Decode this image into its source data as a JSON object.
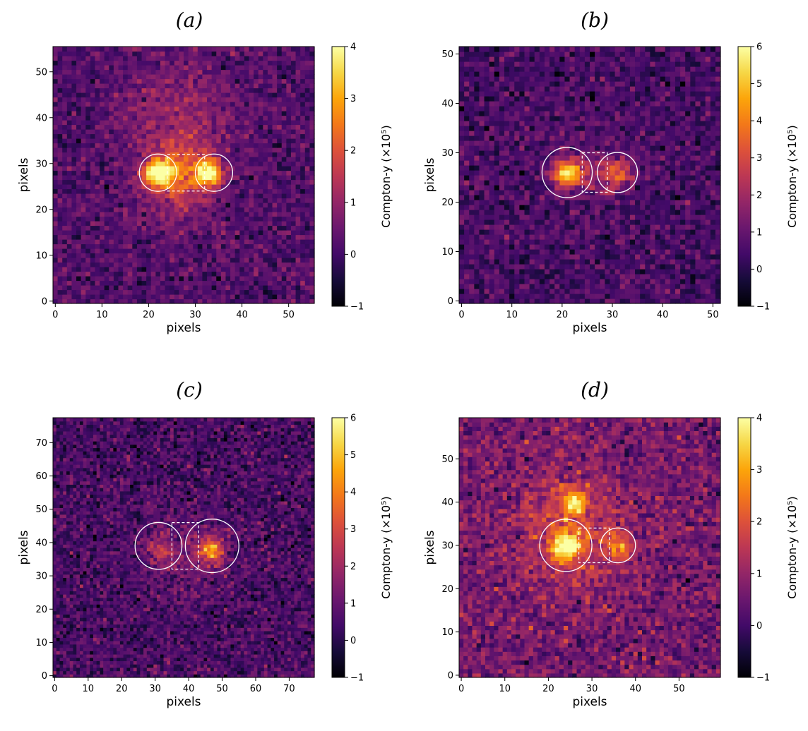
{
  "chart_data": [
    {
      "type": "heatmap",
      "title": "(a)",
      "xlabel": "pixels",
      "ylabel": "pixels",
      "grid_size": 56,
      "xlim": [
        -0.5,
        55.5
      ],
      "ylim": [
        -0.5,
        55.5
      ],
      "xticks": [
        "0",
        "10",
        "20",
        "30",
        "40",
        "50"
      ],
      "yticks": [
        "0",
        "10",
        "20",
        "30",
        "40",
        "50"
      ],
      "colorbar": {
        "label": "Compton-y (×10⁵)",
        "min": -1,
        "max": 4,
        "ticks": [
          "−1",
          "0",
          "1",
          "2",
          "3",
          "4"
        ]
      },
      "noise_level": 0.35,
      "background_level": 0.2,
      "blobs": [
        {
          "x": 22,
          "y": 28,
          "amp": 3.6,
          "sigma": 2.2
        },
        {
          "x": 33,
          "y": 28,
          "amp": 3.4,
          "sigma": 2.0
        },
        {
          "x": 27.5,
          "y": 28,
          "amp": 1.6,
          "sigma": 4.0
        },
        {
          "x": 26,
          "y": 40,
          "amp": 0.9,
          "sigma": 8.0
        },
        {
          "x": 25,
          "y": 22,
          "amp": 0.6,
          "sigma": 6.0
        }
      ],
      "circles": [
        {
          "x": 22,
          "y": 28,
          "r": 4.0
        },
        {
          "x": 34,
          "y": 28,
          "r": 4.0
        }
      ],
      "bridge_box": {
        "x0": 24,
        "x1": 32,
        "y0": 24,
        "y1": 32
      }
    },
    {
      "type": "heatmap",
      "title": "(b)",
      "xlabel": "pixels",
      "ylabel": "pixels",
      "grid_size": 52,
      "xlim": [
        -0.5,
        51.5
      ],
      "ylim": [
        -0.5,
        51.5
      ],
      "xticks": [
        "0",
        "10",
        "20",
        "30",
        "40",
        "50"
      ],
      "yticks": [
        "0",
        "10",
        "20",
        "30",
        "40",
        "50"
      ],
      "colorbar": {
        "label": "Compton-y (×10⁵)",
        "min": -1,
        "max": 6,
        "ticks": [
          "−1",
          "0",
          "1",
          "2",
          "3",
          "4",
          "5",
          "6"
        ]
      },
      "noise_level": 0.5,
      "background_level": 0.5,
      "blobs": [
        {
          "x": 21,
          "y": 26,
          "amp": 5.0,
          "sigma": 2.0
        },
        {
          "x": 31,
          "y": 26,
          "amp": 2.6,
          "sigma": 2.2
        },
        {
          "x": 26,
          "y": 26,
          "amp": 1.0,
          "sigma": 4.0
        }
      ],
      "circles": [
        {
          "x": 21,
          "y": 26,
          "r": 5.0
        },
        {
          "x": 31,
          "y": 26,
          "r": 4.0
        }
      ],
      "bridge_box": {
        "x0": 24,
        "x1": 29,
        "y0": 22,
        "y1": 30
      }
    },
    {
      "type": "heatmap",
      "title": "(c)",
      "xlabel": "pixels",
      "ylabel": "pixels",
      "grid_size": 78,
      "xlim": [
        -0.5,
        77.5
      ],
      "ylim": [
        -0.5,
        77.5
      ],
      "xticks": [
        "0",
        "10",
        "20",
        "30",
        "40",
        "50",
        "60",
        "70"
      ],
      "yticks": [
        "0",
        "10",
        "20",
        "30",
        "40",
        "50",
        "60",
        "70"
      ],
      "colorbar": {
        "label": "Compton-y (×10⁵)",
        "min": -1,
        "max": 6,
        "ticks": [
          "−1",
          "0",
          "1",
          "2",
          "3",
          "4",
          "5",
          "6"
        ]
      },
      "noise_level": 0.55,
      "background_level": 0.5,
      "blobs": [
        {
          "x": 47,
          "y": 38,
          "amp": 3.6,
          "sigma": 2.6
        },
        {
          "x": 31,
          "y": 38,
          "amp": 1.6,
          "sigma": 2.6
        },
        {
          "x": 40,
          "y": 36,
          "amp": 0.9,
          "sigma": 8.0
        }
      ],
      "circles": [
        {
          "x": 31,
          "y": 39,
          "r": 7.0
        },
        {
          "x": 47,
          "y": 39,
          "r": 8.0
        }
      ],
      "bridge_box": {
        "x0": 35,
        "x1": 43,
        "y0": 32,
        "y1": 46
      }
    },
    {
      "type": "heatmap",
      "title": "(d)",
      "xlabel": "pixels",
      "ylabel": "pixels",
      "grid_size": 60,
      "xlim": [
        -0.5,
        59.5
      ],
      "ylim": [
        -0.5,
        59.5
      ],
      "xticks": [
        "0",
        "10",
        "20",
        "30",
        "40",
        "50"
      ],
      "yticks": [
        "0",
        "10",
        "20",
        "30",
        "40",
        "50"
      ],
      "colorbar": {
        "label": "Compton-y (×10⁵)",
        "min": -1,
        "max": 4,
        "ticks": [
          "−1",
          "0",
          "1",
          "2",
          "3",
          "4"
        ]
      },
      "noise_level": 0.45,
      "background_level": 0.6,
      "blobs": [
        {
          "x": 24,
          "y": 30,
          "amp": 3.2,
          "sigma": 2.2
        },
        {
          "x": 26,
          "y": 40,
          "amp": 2.6,
          "sigma": 2.0
        },
        {
          "x": 36,
          "y": 30,
          "amp": 1.6,
          "sigma": 2.2
        },
        {
          "x": 25,
          "y": 33,
          "amp": 1.2,
          "sigma": 9.0
        }
      ],
      "circles": [
        {
          "x": 24,
          "y": 30,
          "r": 6.0
        },
        {
          "x": 36,
          "y": 30,
          "r": 4.0
        }
      ],
      "bridge_box": {
        "x0": 27,
        "x1": 34,
        "y0": 26,
        "y1": 34
      }
    }
  ]
}
